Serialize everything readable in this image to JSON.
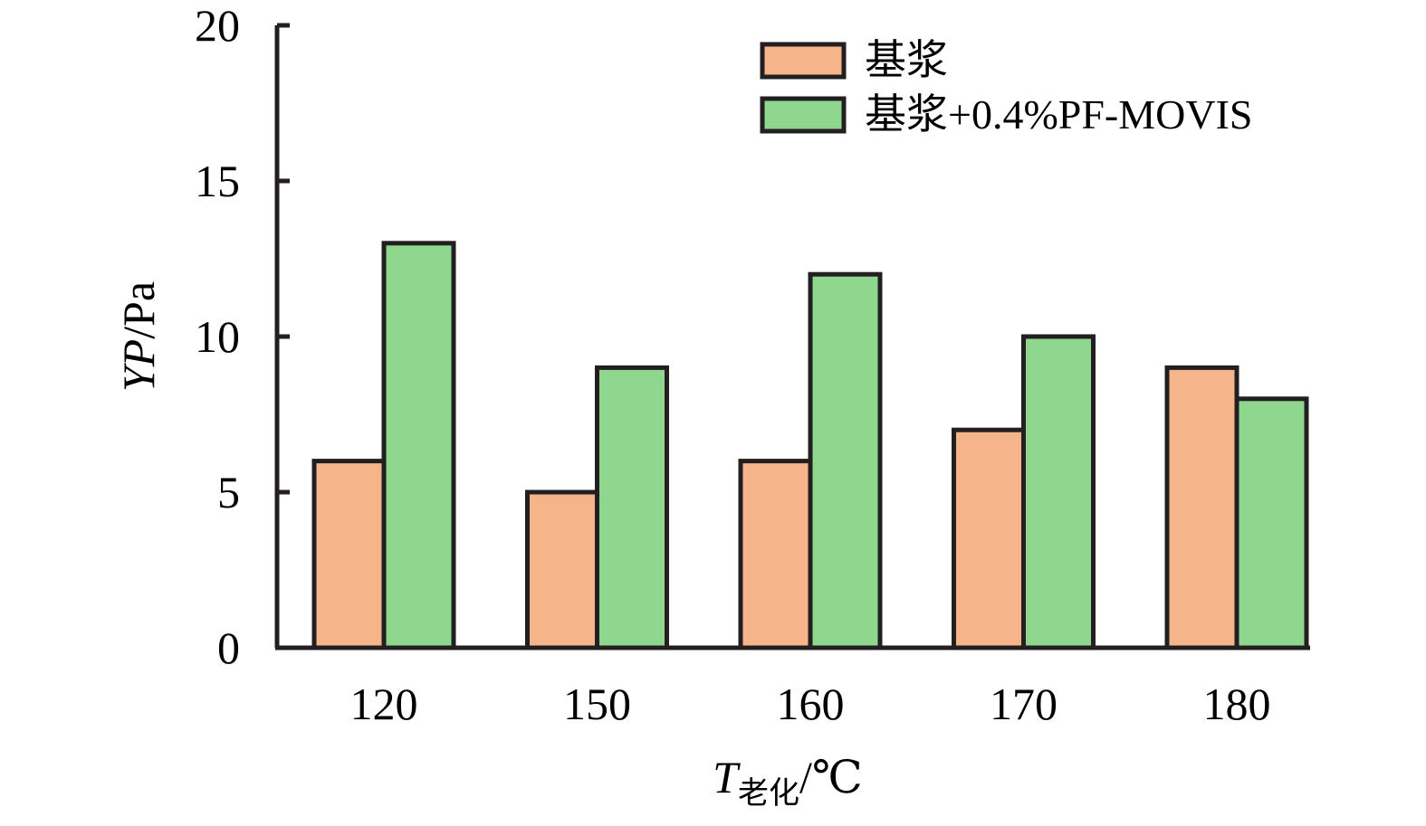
{
  "chart_data": {
    "type": "bar",
    "categories": [
      "120",
      "150",
      "160",
      "170",
      "180"
    ],
    "series": [
      {
        "name": "基浆",
        "values": [
          6,
          5,
          6,
          7,
          9
        ],
        "color": "#f5b48a"
      },
      {
        "name": "基浆+0.4%PF-MOVIS",
        "values": [
          13,
          9,
          12,
          10,
          8
        ],
        "color": "#8fd68f"
      }
    ],
    "ylim": [
      0,
      20
    ],
    "yticks": [
      "0",
      "5",
      "10",
      "15",
      "20"
    ],
    "ylabel": {
      "main": "YP",
      "unit": "/Pa"
    },
    "xlabel": {
      "main": "T",
      "sub": "老化",
      "unit": "/℃"
    },
    "legend_position": "top-right",
    "grid": false,
    "edge_color": "#231f20"
  }
}
